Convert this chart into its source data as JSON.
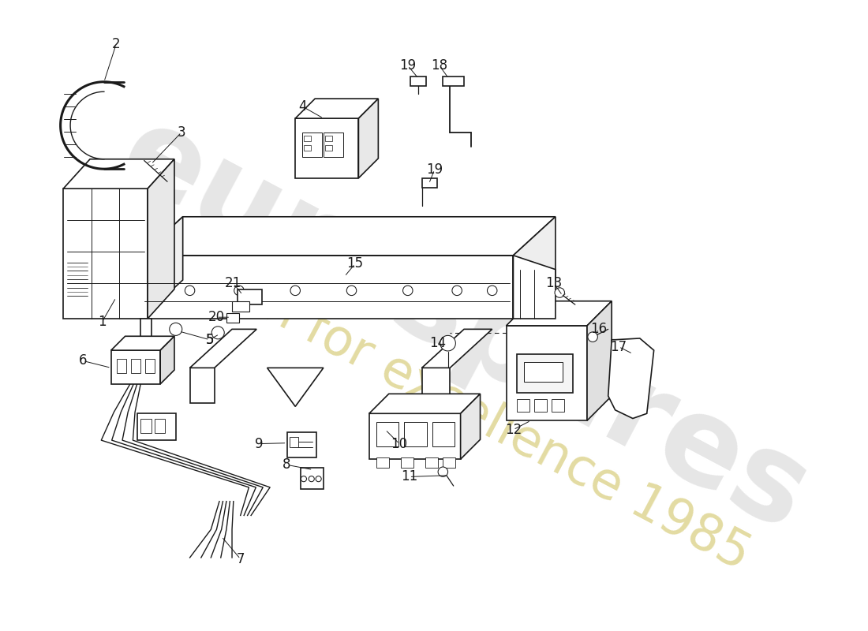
{
  "background_color": "#ffffff",
  "line_color": "#1a1a1a",
  "watermark1": "eurospares",
  "watermark2": "a passion for excellence 1985",
  "wm1_color": "#c8c8c8",
  "wm2_color": "#d4c870",
  "fig_width": 11.0,
  "fig_height": 8.0,
  "dpi": 100,
  "label_fontsize": 12
}
